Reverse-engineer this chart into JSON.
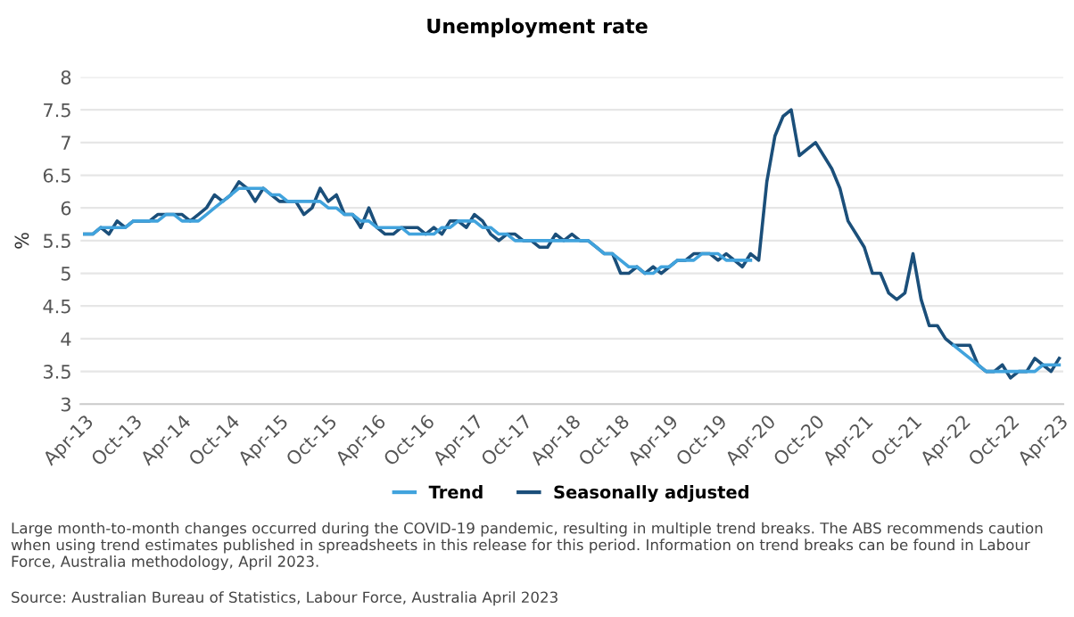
{
  "chart_data": {
    "type": "line",
    "title": "Unemployment rate",
    "ylabel": "%",
    "categories": [
      "Apr-13",
      null,
      null,
      null,
      null,
      null,
      "Oct-13",
      null,
      null,
      null,
      null,
      null,
      "Apr-14",
      null,
      null,
      null,
      null,
      null,
      "Oct-14",
      null,
      null,
      null,
      null,
      null,
      "Apr-15",
      null,
      null,
      null,
      null,
      null,
      "Oct-15",
      null,
      null,
      null,
      null,
      null,
      "Apr-16",
      null,
      null,
      null,
      null,
      null,
      "Oct-16",
      null,
      null,
      null,
      null,
      null,
      "Apr-17",
      null,
      null,
      null,
      null,
      null,
      "Oct-17",
      null,
      null,
      null,
      null,
      null,
      "Apr-18",
      null,
      null,
      null,
      null,
      null,
      "Oct-18",
      null,
      null,
      null,
      null,
      null,
      "Apr-19",
      null,
      null,
      null,
      null,
      null,
      "Oct-19",
      null,
      null,
      null,
      null,
      null,
      "Apr-20",
      null,
      null,
      null,
      null,
      null,
      "Oct-20",
      null,
      null,
      null,
      null,
      null,
      "Apr-21",
      null,
      null,
      null,
      null,
      null,
      "Oct-21",
      null,
      null,
      null,
      null,
      null,
      "Apr-22",
      null,
      null,
      null,
      null,
      null,
      "Oct-22",
      null,
      null,
      null,
      null,
      null,
      "Apr-23"
    ],
    "series": [
      {
        "name": "Trend",
        "color": "#41a3dd",
        "values": [
          5.6,
          5.6,
          5.7,
          5.7,
          5.7,
          5.7,
          5.8,
          5.8,
          5.8,
          5.8,
          5.9,
          5.9,
          5.8,
          5.8,
          5.8,
          5.9,
          6.0,
          6.1,
          6.2,
          6.3,
          6.3,
          6.3,
          6.3,
          6.2,
          6.2,
          6.1,
          6.1,
          6.1,
          6.1,
          6.1,
          6.0,
          6.0,
          5.9,
          5.9,
          5.8,
          5.8,
          5.7,
          5.7,
          5.7,
          5.7,
          5.6,
          5.6,
          5.6,
          5.6,
          5.7,
          5.7,
          5.8,
          5.8,
          5.8,
          5.7,
          5.7,
          5.6,
          5.6,
          5.5,
          5.5,
          5.5,
          5.5,
          5.5,
          5.5,
          5.5,
          5.5,
          5.5,
          5.5,
          5.4,
          5.3,
          5.3,
          5.2,
          5.1,
          5.1,
          5.0,
          5.0,
          5.1,
          5.1,
          5.2,
          5.2,
          5.2,
          5.3,
          5.3,
          5.3,
          5.2,
          5.2,
          5.2,
          5.2,
          null,
          null,
          null,
          null,
          null,
          null,
          null,
          null,
          null,
          null,
          null,
          null,
          null,
          null,
          null,
          null,
          null,
          null,
          null,
          null,
          null,
          null,
          null,
          null,
          3.9,
          3.8,
          3.7,
          3.6,
          3.5,
          3.5,
          3.5,
          3.5,
          3.5,
          3.5,
          3.5,
          3.6,
          3.6,
          3.6
        ]
      },
      {
        "name": "Seasonally adjusted",
        "color": "#1b4f7a",
        "values": [
          5.6,
          5.6,
          5.7,
          5.6,
          5.8,
          5.7,
          5.8,
          5.8,
          5.8,
          5.9,
          5.9,
          5.9,
          5.9,
          5.8,
          5.9,
          6.0,
          6.2,
          6.1,
          6.2,
          6.4,
          6.3,
          6.1,
          6.3,
          6.2,
          6.1,
          6.1,
          6.1,
          5.9,
          6.0,
          6.3,
          6.1,
          6.2,
          5.9,
          5.9,
          5.7,
          6.0,
          5.7,
          5.6,
          5.6,
          5.7,
          5.7,
          5.7,
          5.6,
          5.7,
          5.6,
          5.8,
          5.8,
          5.7,
          5.9,
          5.8,
          5.6,
          5.5,
          5.6,
          5.6,
          5.5,
          5.5,
          5.4,
          5.4,
          5.6,
          5.5,
          5.6,
          5.5,
          5.5,
          5.4,
          5.3,
          5.3,
          5.0,
          5.0,
          5.1,
          5.0,
          5.1,
          5.0,
          5.1,
          5.2,
          5.2,
          5.3,
          5.3,
          5.3,
          5.2,
          5.3,
          5.2,
          5.1,
          5.3,
          5.2,
          6.4,
          7.1,
          7.4,
          7.5,
          6.8,
          6.9,
          7.0,
          6.8,
          6.6,
          6.3,
          5.8,
          5.6,
          5.4,
          5.0,
          5.0,
          4.7,
          4.6,
          4.7,
          5.3,
          4.6,
          4.2,
          4.2,
          4.0,
          3.9,
          3.9,
          3.9,
          3.6,
          3.5,
          3.5,
          3.6,
          3.4,
          3.5,
          3.5,
          3.7,
          3.6,
          3.5,
          3.7
        ]
      }
    ],
    "ylim": [
      3,
      8
    ],
    "yticks": [
      3,
      3.5,
      4,
      4.5,
      5,
      5.5,
      6,
      6.5,
      7,
      7.5,
      8
    ],
    "grid": "y",
    "legend": "bottom",
    "marker": "none",
    "line_style": "solid",
    "annotations": [
      "Large month-to-month changes occurred during the COVID-19 pandemic, resulting in multiple trend breaks. The ABS recommends caution when using trend estimates published in spreadsheets in this release for this period. Information on trend breaks can be found in Labour Force, Australia methodology, April 2023.",
      "Source: Australian Bureau of Statistics, Labour Force, Australia April 2023"
    ]
  }
}
